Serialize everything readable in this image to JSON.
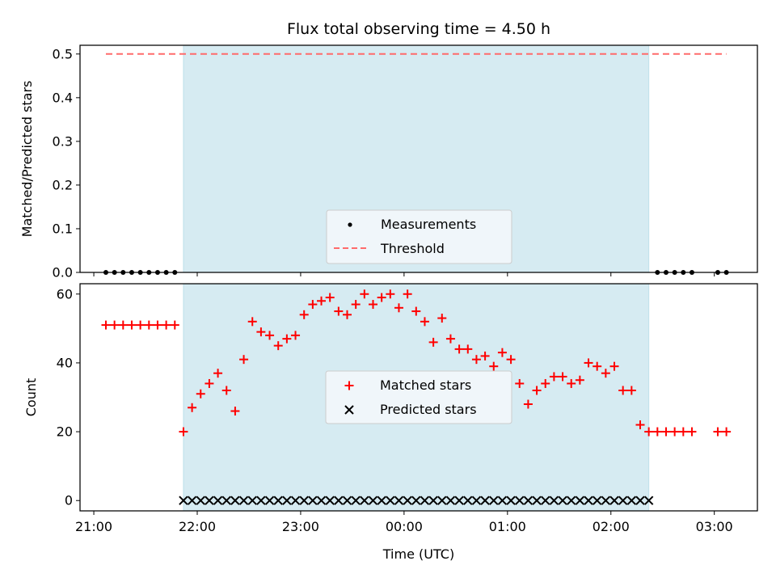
{
  "chart_data": [
    {
      "type": "scatter",
      "title": "Flux total observing time = 4.50 h",
      "xlabel": "",
      "ylabel": "Matched/Predicted stars",
      "ylim": [
        0.0,
        0.52
      ],
      "yticks": [
        0.0,
        0.1,
        0.2,
        0.3,
        0.4,
        0.5
      ],
      "ytick_labels": [
        "0.0",
        "0.1",
        "0.2",
        "0.3",
        "0.4",
        "0.5"
      ],
      "legend": {
        "placement": "lower-center",
        "entries": [
          "Measurements",
          "Threshold"
        ]
      },
      "series": [
        {
          "name": "Measurements",
          "marker": "dot",
          "color": "#000000",
          "x": [
            "21:07",
            "21:12",
            "21:17",
            "21:22",
            "21:27",
            "21:32",
            "21:37",
            "21:42",
            "21:47",
            "02:27",
            "02:32",
            "02:37",
            "02:42",
            "02:47",
            "03:02",
            "03:07"
          ],
          "y": [
            0,
            0,
            0,
            0,
            0,
            0,
            0,
            0,
            0,
            0,
            0,
            0,
            0,
            0,
            0,
            0
          ]
        },
        {
          "name": "Threshold",
          "line": "dashed",
          "color": "#ff6b6b",
          "x": [
            "21:07",
            "03:07"
          ],
          "y": [
            0.5,
            0.5
          ]
        }
      ]
    },
    {
      "type": "scatter",
      "title": "",
      "xlabel": "Time (UTC)",
      "ylabel": "Count",
      "ylim": [
        -3,
        63
      ],
      "yticks": [
        0,
        20,
        40,
        60
      ],
      "ytick_labels": [
        "0",
        "20",
        "40",
        "60"
      ],
      "legend": {
        "placement": "center",
        "entries": [
          "Matched stars",
          "Predicted stars"
        ]
      },
      "series": [
        {
          "name": "Matched stars",
          "marker": "plus",
          "color": "#ff0000",
          "x": [
            "21:07",
            "21:12",
            "21:17",
            "21:22",
            "21:27",
            "21:32",
            "21:37",
            "21:42",
            "21:47",
            "21:52",
            "21:57",
            "22:02",
            "22:07",
            "22:12",
            "22:17",
            "22:22",
            "22:27",
            "22:32",
            "22:37",
            "22:42",
            "22:47",
            "22:52",
            "22:57",
            "23:02",
            "23:07",
            "23:12",
            "23:17",
            "23:22",
            "23:27",
            "23:32",
            "23:37",
            "23:42",
            "23:47",
            "23:52",
            "23:57",
            "00:02",
            "00:07",
            "00:12",
            "00:17",
            "00:22",
            "00:27",
            "00:32",
            "00:37",
            "00:42",
            "00:47",
            "00:52",
            "00:57",
            "01:02",
            "01:07",
            "01:12",
            "01:17",
            "01:22",
            "01:27",
            "01:32",
            "01:37",
            "01:42",
            "01:47",
            "01:52",
            "01:57",
            "02:02",
            "02:07",
            "02:12",
            "02:17",
            "02:22",
            "02:27",
            "02:32",
            "02:37",
            "02:42",
            "02:47",
            "03:02",
            "03:07"
          ],
          "y": [
            51,
            51,
            51,
            51,
            51,
            51,
            51,
            51,
            51,
            20,
            27,
            31,
            34,
            37,
            32,
            26,
            41,
            52,
            49,
            48,
            45,
            47,
            48,
            54,
            57,
            58,
            59,
            55,
            54,
            57,
            60,
            57,
            59,
            60,
            56,
            60,
            55,
            52,
            46,
            53,
            47,
            44,
            44,
            41,
            42,
            39,
            43,
            41,
            34,
            28,
            32,
            34,
            36,
            36,
            34,
            35,
            40,
            39,
            37,
            39,
            32,
            32,
            22,
            20,
            20,
            20,
            20,
            20,
            20,
            20,
            20
          ]
        },
        {
          "name": "Predicted stars",
          "marker": "x",
          "color": "#000000",
          "x": [
            "21:52",
            "21:57",
            "22:02",
            "22:07",
            "22:12",
            "22:17",
            "22:22",
            "22:27",
            "22:32",
            "22:37",
            "22:42",
            "22:47",
            "22:52",
            "22:57",
            "23:02",
            "23:07",
            "23:12",
            "23:17",
            "23:22",
            "23:27",
            "23:32",
            "23:37",
            "23:42",
            "23:47",
            "23:52",
            "23:57",
            "00:02",
            "00:07",
            "00:12",
            "00:17",
            "00:22",
            "00:27",
            "00:32",
            "00:37",
            "00:42",
            "00:47",
            "00:52",
            "00:57",
            "01:02",
            "01:07",
            "01:12",
            "01:17",
            "01:22",
            "01:27",
            "01:32",
            "01:37",
            "01:42",
            "01:47",
            "01:52",
            "01:57",
            "02:02",
            "02:07",
            "02:12",
            "02:17",
            "02:22"
          ],
          "y": [
            0,
            0,
            0,
            0,
            0,
            0,
            0,
            0,
            0,
            0,
            0,
            0,
            0,
            0,
            0,
            0,
            0,
            0,
            0,
            0,
            0,
            0,
            0,
            0,
            0,
            0,
            0,
            0,
            0,
            0,
            0,
            0,
            0,
            0,
            0,
            0,
            0,
            0,
            0,
            0,
            0,
            0,
            0,
            0,
            0,
            0,
            0,
            0,
            0,
            0,
            0,
            0,
            0,
            0,
            0
          ]
        }
      ]
    }
  ],
  "shared_x": {
    "label": "Time (UTC)",
    "ticks": [
      "21:00",
      "22:00",
      "23:00",
      "00:00",
      "01:00",
      "02:00",
      "03:00"
    ],
    "range": [
      "20:52",
      "03:25"
    ]
  },
  "shaded_span": {
    "from": "21:52",
    "to": "02:22",
    "color": "#add8e6"
  }
}
